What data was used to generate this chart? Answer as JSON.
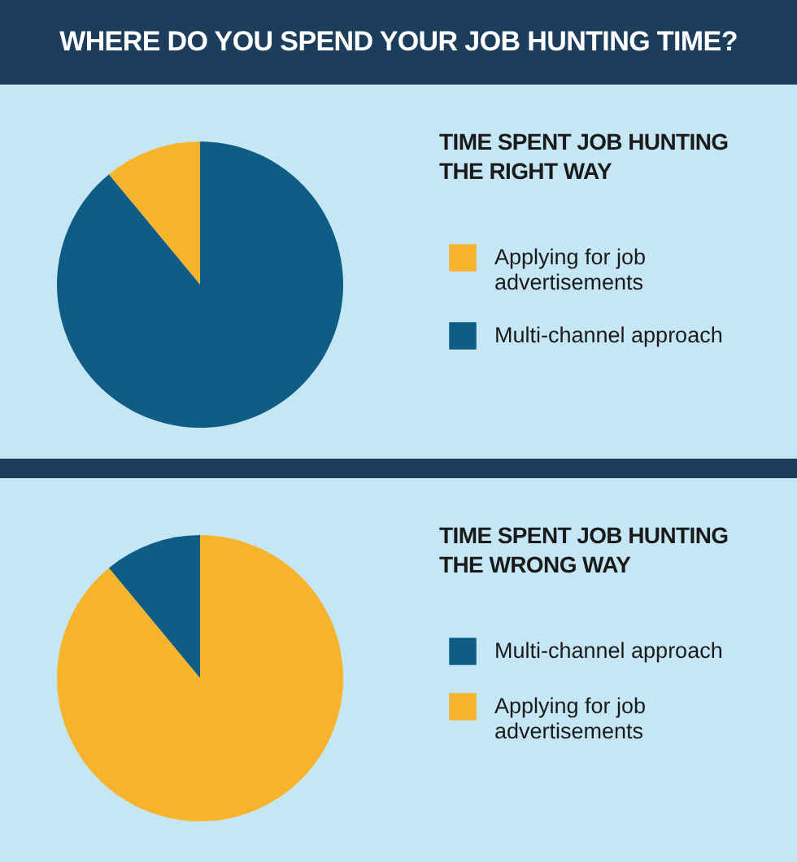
{
  "chart_data": [
    {
      "type": "pie",
      "title": "WHERE DO YOU SPEND YOUR JOB HUNTING TIME?",
      "subtitle": "TIME SPENT JOB HUNTING THE RIGHT WAY",
      "categories": [
        "Applying for job advertisements",
        "Multi-channel approach"
      ],
      "values": [
        11,
        89
      ],
      "colors": [
        "#f7b32b",
        "#0f5c85"
      ],
      "legend": "right"
    },
    {
      "type": "pie",
      "title": "TIME SPENT JOB HUNTING THE WRONG WAY",
      "categories": [
        "Multi-channel approach",
        "Applying for job advertisements"
      ],
      "values": [
        11,
        89
      ],
      "colors": [
        "#0f5c85",
        "#f7b32b"
      ],
      "legend": "right"
    }
  ]
}
